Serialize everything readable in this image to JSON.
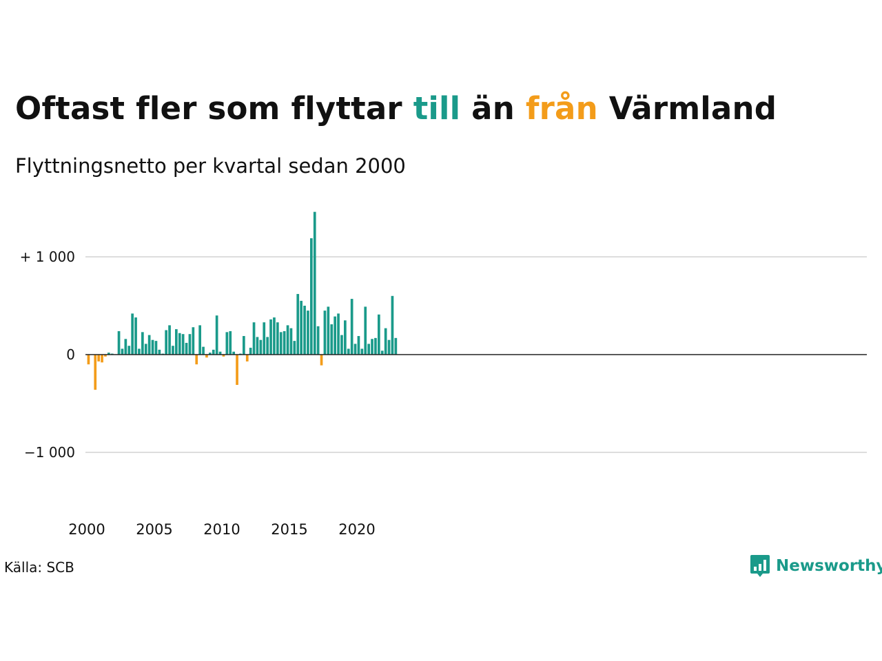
{
  "header": {
    "title_parts": [
      "Oftast fler som flyttar ",
      "till",
      " än ",
      "från",
      " Värmland"
    ],
    "subtitle": "Flyttningsnetto per kvartal sedan 2000"
  },
  "footer": {
    "source": "Källa: SCB",
    "brand": "Newsworthy"
  },
  "colors": {
    "positive": "#1a9a8a",
    "negative": "#f39c1a",
    "grid": "#dddddd",
    "zero_line": "#222222"
  },
  "chart_data": {
    "type": "bar",
    "x_start": "2000 Q1",
    "x_interval": "quarter",
    "values": [
      -100,
      0,
      -360,
      -70,
      -80,
      -20,
      20,
      10,
      0,
      240,
      60,
      160,
      90,
      420,
      380,
      60,
      230,
      110,
      200,
      150,
      140,
      50,
      10,
      250,
      300,
      90,
      260,
      220,
      210,
      120,
      210,
      280,
      -100,
      300,
      80,
      -30,
      20,
      50,
      400,
      30,
      -20,
      230,
      240,
      30,
      -310,
      10,
      190,
      -70,
      70,
      330,
      180,
      150,
      330,
      180,
      360,
      380,
      330,
      230,
      240,
      300,
      270,
      140,
      620,
      550,
      500,
      450,
      1190,
      1460,
      290,
      -110,
      450,
      490,
      310,
      390,
      420,
      200,
      350,
      60,
      570,
      110,
      190,
      60,
      490,
      110,
      160,
      170,
      410,
      40,
      270,
      150,
      600,
      170
    ],
    "ylim": [
      -1300,
      1500
    ],
    "y_ticks": [
      1000,
      0,
      -1000
    ],
    "y_tick_labels": [
      "+ 1 000",
      "0",
      "−1 000"
    ],
    "x_ticks": [
      "2000",
      "2005",
      "2010",
      "2015",
      "2020"
    ],
    "grid": true,
    "legend": "none"
  }
}
